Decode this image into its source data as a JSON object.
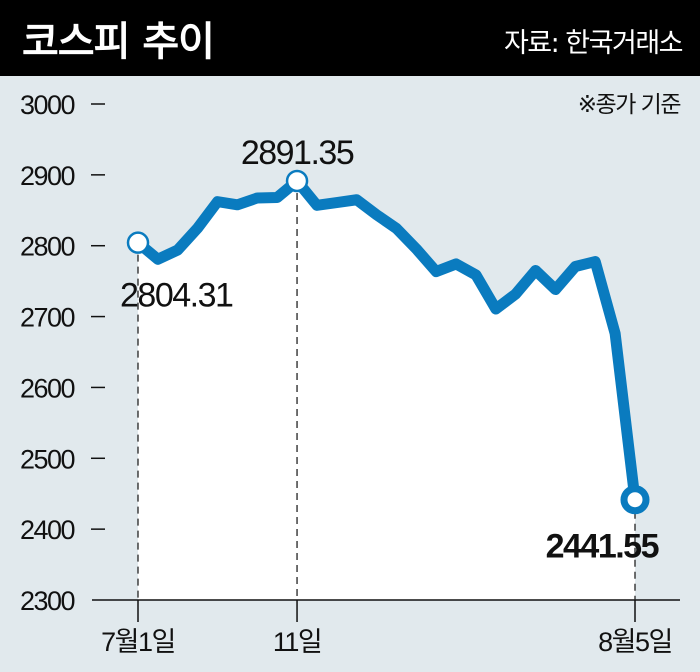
{
  "chart_data": {
    "type": "line",
    "title": "코스피 추이",
    "source": "자료: 한국거래소",
    "note": "※종가 기준",
    "xlabel": "",
    "ylabel": "",
    "ylim": [
      2300,
      3000
    ],
    "yticks": [
      "3000",
      "2900",
      "2800",
      "2700",
      "2600",
      "2500",
      "2400",
      "2300"
    ],
    "x_tick_labels": [
      {
        "index": 0,
        "label": "7월1일"
      },
      {
        "index": 8,
        "label": "11일"
      },
      {
        "index": 25,
        "label": "8월5일"
      }
    ],
    "series": [
      {
        "name": "코스피",
        "values": [
          2804.31,
          2780.86,
          2794.01,
          2824.94,
          2862.23,
          2857.76,
          2867.38,
          2867.99,
          2891.35,
          2857.0,
          2860.92,
          2864.88,
          2843.69,
          2824.35,
          2795.46,
          2763.51,
          2774.29,
          2758.76,
          2710.65,
          2731.9,
          2765.06,
          2738.19,
          2770.69,
          2777.68,
          2676.19,
          2441.55
        ]
      }
    ],
    "annotations": [
      {
        "index": 0,
        "label": "2804.31"
      },
      {
        "index": 8,
        "label": "2891.35"
      },
      {
        "index": 25,
        "label": "2441.55"
      }
    ],
    "grid": false,
    "colors": {
      "line": "#0a7bbf",
      "background": "#e1e9ed",
      "area": "#ffffff",
      "header": "#000000",
      "highlight_label": "#0a7bbf"
    }
  }
}
